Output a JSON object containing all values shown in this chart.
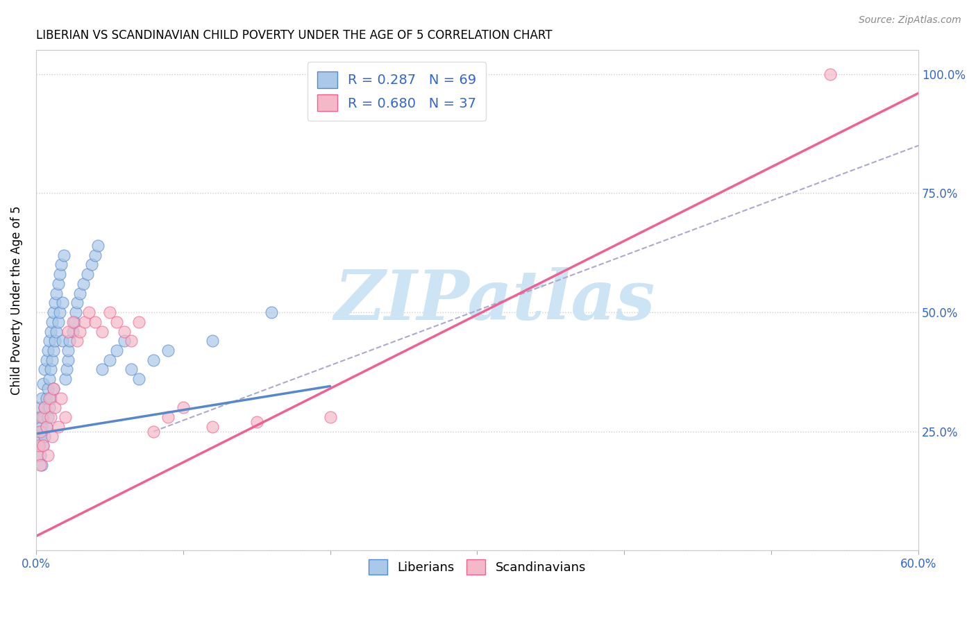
{
  "title": "LIBERIAN VS SCANDINAVIAN CHILD POVERTY UNDER THE AGE OF 5 CORRELATION CHART",
  "source": "Source: ZipAtlas.com",
  "ylabel": "Child Poverty Under the Age of 5",
  "xlim": [
    0.0,
    0.6
  ],
  "ylim": [
    0.0,
    1.05
  ],
  "xticks": [
    0.0,
    0.1,
    0.2,
    0.3,
    0.4,
    0.5,
    0.6
  ],
  "xticklabels": [
    "0.0%",
    "",
    "",
    "",
    "",
    "",
    "60.0%"
  ],
  "yticks": [
    0.0,
    0.25,
    0.5,
    0.75,
    1.0
  ],
  "yticklabels": [
    "",
    "25.0%",
    "50.0%",
    "75.0%",
    "100.0%"
  ],
  "liberians_color": "#aac8e8",
  "scandinavians_color": "#f4b8c8",
  "trendline_blue_color": "#5588cc",
  "trendline_pink_color": "#f06090",
  "trendline_gray_color": "#aaaacc",
  "watermark": "ZIPatlas",
  "watermark_color": "#cce4f4",
  "liberians_x": [
    0.001,
    0.002,
    0.002,
    0.003,
    0.003,
    0.003,
    0.004,
    0.004,
    0.004,
    0.005,
    0.005,
    0.005,
    0.006,
    0.006,
    0.006,
    0.007,
    0.007,
    0.007,
    0.008,
    0.008,
    0.008,
    0.009,
    0.009,
    0.009,
    0.01,
    0.01,
    0.01,
    0.011,
    0.011,
    0.012,
    0.012,
    0.012,
    0.013,
    0.013,
    0.014,
    0.014,
    0.015,
    0.015,
    0.016,
    0.016,
    0.017,
    0.018,
    0.018,
    0.019,
    0.02,
    0.021,
    0.022,
    0.022,
    0.023,
    0.025,
    0.026,
    0.027,
    0.028,
    0.03,
    0.032,
    0.035,
    0.038,
    0.04,
    0.042,
    0.045,
    0.05,
    0.055,
    0.06,
    0.065,
    0.07,
    0.08,
    0.09,
    0.12,
    0.16
  ],
  "liberians_y": [
    0.25,
    0.22,
    0.28,
    0.24,
    0.3,
    0.2,
    0.32,
    0.26,
    0.18,
    0.35,
    0.28,
    0.22,
    0.38,
    0.3,
    0.24,
    0.4,
    0.32,
    0.26,
    0.42,
    0.34,
    0.28,
    0.44,
    0.36,
    0.3,
    0.46,
    0.38,
    0.32,
    0.48,
    0.4,
    0.5,
    0.42,
    0.34,
    0.52,
    0.44,
    0.54,
    0.46,
    0.56,
    0.48,
    0.58,
    0.5,
    0.6,
    0.52,
    0.44,
    0.62,
    0.36,
    0.38,
    0.4,
    0.42,
    0.44,
    0.46,
    0.48,
    0.5,
    0.52,
    0.54,
    0.56,
    0.58,
    0.6,
    0.62,
    0.64,
    0.38,
    0.4,
    0.42,
    0.44,
    0.38,
    0.36,
    0.4,
    0.42,
    0.44,
    0.5
  ],
  "scandinavians_x": [
    0.001,
    0.002,
    0.003,
    0.003,
    0.004,
    0.005,
    0.006,
    0.007,
    0.008,
    0.009,
    0.01,
    0.011,
    0.012,
    0.013,
    0.015,
    0.017,
    0.02,
    0.022,
    0.025,
    0.028,
    0.03,
    0.033,
    0.036,
    0.04,
    0.045,
    0.05,
    0.055,
    0.06,
    0.065,
    0.07,
    0.08,
    0.09,
    0.1,
    0.12,
    0.15,
    0.2,
    0.54
  ],
  "scandinavians_y": [
    0.2,
    0.22,
    0.25,
    0.18,
    0.28,
    0.22,
    0.3,
    0.26,
    0.2,
    0.32,
    0.28,
    0.24,
    0.34,
    0.3,
    0.26,
    0.32,
    0.28,
    0.46,
    0.48,
    0.44,
    0.46,
    0.48,
    0.5,
    0.48,
    0.46,
    0.5,
    0.48,
    0.46,
    0.44,
    0.48,
    0.25,
    0.28,
    0.3,
    0.26,
    0.27,
    0.28,
    1.0
  ],
  "blue_trend_x": [
    0.0,
    0.2
  ],
  "blue_trend_y": [
    0.245,
    0.345
  ],
  "pink_trend_x": [
    0.0,
    0.6
  ],
  "pink_trend_y": [
    0.03,
    0.96
  ],
  "gray_trend_x": [
    0.08,
    0.6
  ],
  "gray_trend_y": [
    0.25,
    0.85
  ]
}
